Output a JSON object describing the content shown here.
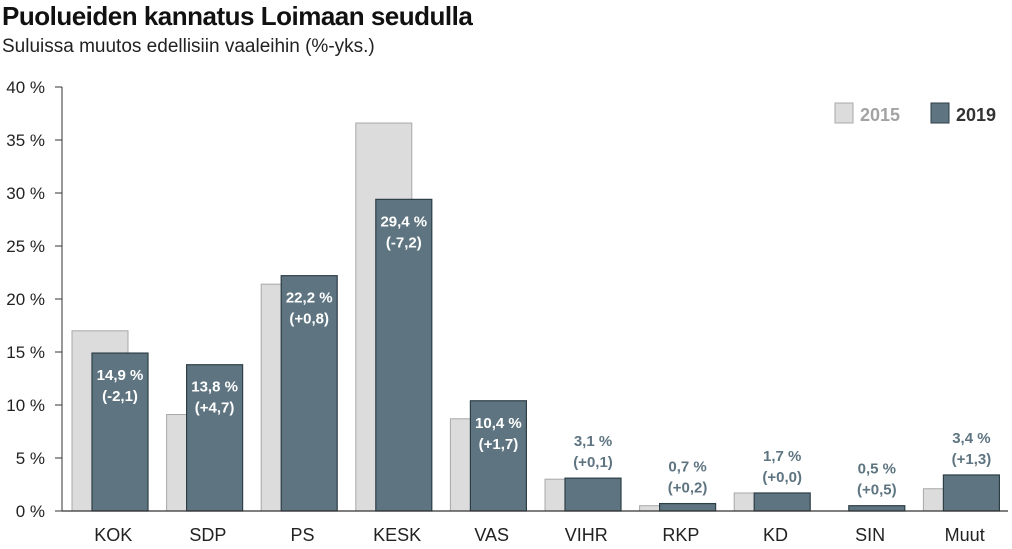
{
  "title": "Puolueiden kannatus Loimaan seudulla",
  "subtitle": "Suluissa  muutos edellisiin vaaleihin (%-yks.)",
  "colors": {
    "series_2015": "#dcdcdc",
    "series_2019": "#5e7581",
    "label_inside": "#ffffff",
    "label_outside": "#5e7581",
    "axis": "#333333"
  },
  "chart_data": {
    "type": "bar",
    "title": "Puolueiden kannatus Loimaan seudulla",
    "subtitle": "Suluissa  muutos edellisiin vaaleihin (%-yks.)",
    "xlabel": "",
    "ylabel": "",
    "ylim": [
      0,
      40
    ],
    "yticks": [
      "0 %",
      "5 %",
      "10 %",
      "15 %",
      "20 %",
      "25 %",
      "30 %",
      "35 %",
      "40 %"
    ],
    "grid": false,
    "legend": "top-right",
    "categories": [
      "KOK",
      "SDP",
      "PS",
      "KESK",
      "VAS",
      "VIHR",
      "RKP",
      "KD",
      "SIN",
      "Muut"
    ],
    "series": [
      {
        "name": "2015",
        "values": [
          17.0,
          9.1,
          21.4,
          36.6,
          8.7,
          3.0,
          0.5,
          1.7,
          0.0,
          2.1
        ]
      },
      {
        "name": "2019",
        "values": [
          14.9,
          13.8,
          22.2,
          29.4,
          10.4,
          3.1,
          0.7,
          1.7,
          0.5,
          3.4
        ]
      }
    ],
    "data_labels": [
      {
        "value": "14,9 %",
        "change": "(-2,1)"
      },
      {
        "value": "13,8 %",
        "change": "(+4,7)"
      },
      {
        "value": "22,2 %",
        "change": "(+0,8)"
      },
      {
        "value": "29,4 %",
        "change": "(-7,2)"
      },
      {
        "value": "10,4 %",
        "change": "(+1,7)"
      },
      {
        "value": "3,1 %",
        "change": "(+0,1)"
      },
      {
        "value": "0,7 %",
        "change": "(+0,2)"
      },
      {
        "value": "1,7 %",
        "change": "(+0,0)"
      },
      {
        "value": "0,5 %",
        "change": "(+0,5)"
      },
      {
        "value": "3,4 %",
        "change": "(+1,3)"
      }
    ]
  }
}
